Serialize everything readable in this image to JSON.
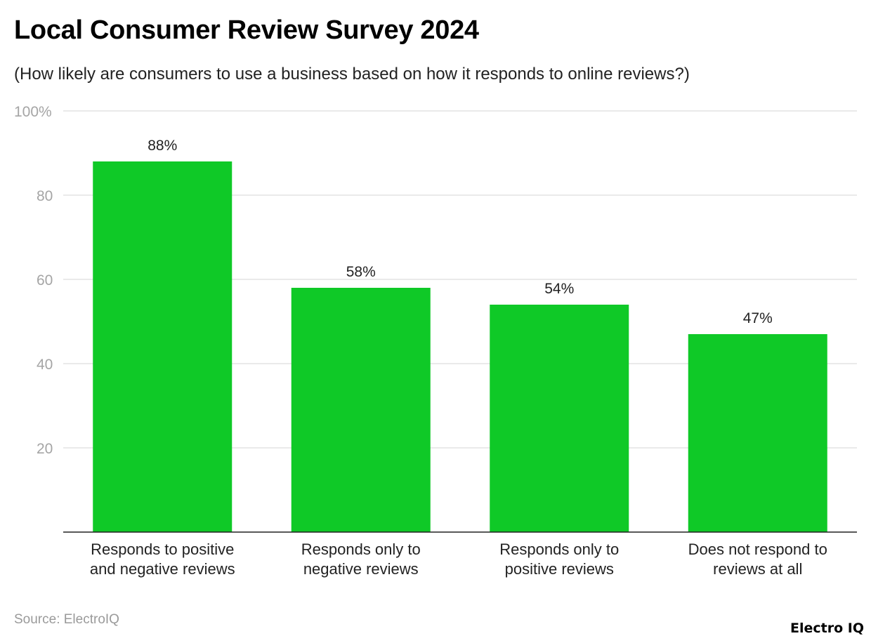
{
  "chart_data": {
    "type": "bar",
    "title": "Local Consumer Review Survey 2024",
    "subtitle": "(How likely are consumers to use a business based on how it responds to online reviews?)",
    "categories": [
      [
        "Responds to positive",
        "and negative reviews"
      ],
      [
        "Responds only to",
        "negative reviews"
      ],
      [
        "Responds only to",
        "positive reviews"
      ],
      [
        "Does not respond to",
        "reviews at all"
      ]
    ],
    "values": [
      88,
      58,
      54,
      47
    ],
    "data_labels": [
      "88%",
      "58%",
      "54%",
      "47%"
    ],
    "ylim": [
      0,
      100
    ],
    "yticks": [
      20,
      40,
      60,
      80,
      100
    ],
    "ytick_labels": [
      "20",
      "40",
      "60",
      "80",
      "100%"
    ],
    "grid": true,
    "bar_color": "#0fc927"
  },
  "footer": {
    "source": "Source: ElectroIQ",
    "logo": "Electro IQ"
  }
}
